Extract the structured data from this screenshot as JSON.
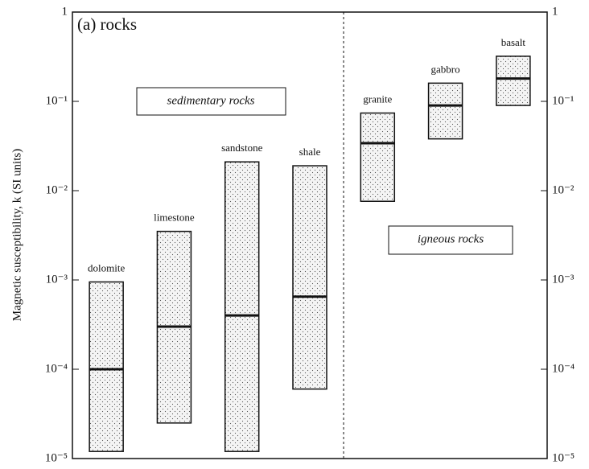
{
  "chart_data": {
    "type": "range_bar",
    "title": "(a)  rocks",
    "y_label": "Magnetic susceptibility, k (SI units)",
    "categories": [
      "dolomite",
      "limestone",
      "sandstone",
      "shale",
      "granite",
      "gabbro",
      "basalt"
    ],
    "low": [
      1.2e-05,
      2.5e-05,
      1.2e-05,
      6e-05,
      0.0076,
      0.038,
      0.09
    ],
    "high": [
      0.00095,
      0.0035,
      0.021,
      0.019,
      0.074,
      0.16,
      0.32
    ],
    "median": [
      0.0001,
      0.0003,
      0.0004,
      0.00065,
      0.034,
      0.09,
      0.18
    ],
    "groups": [
      "sedimentary rocks",
      "igneous rocks"
    ],
    "log_scale": true,
    "ylim": [
      1e-05,
      1
    ],
    "yticks": [
      {
        "value": 1e-05,
        "label": "10⁻⁵"
      },
      {
        "value": 0.0001,
        "label": "10⁻⁴"
      },
      {
        "value": 0.001,
        "label": "10⁻³"
      },
      {
        "value": 0.01,
        "label": "10⁻²"
      },
      {
        "value": 0.1,
        "label": "10⁻¹"
      },
      1
    ],
    "color": "#ececec"
  }
}
